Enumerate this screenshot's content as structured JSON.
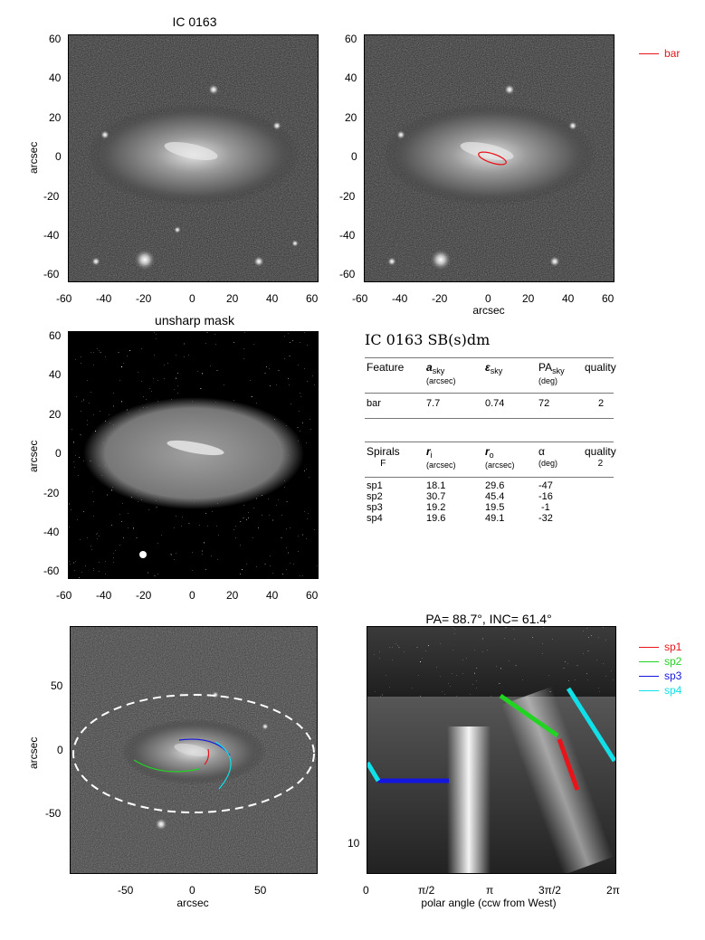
{
  "panel1": {
    "title": "IC 0163",
    "ylabel": "arcsec",
    "xticks": [
      "-60",
      "-40",
      "-20",
      "0",
      "20",
      "40",
      "60"
    ],
    "yticks": [
      "60",
      "40",
      "20",
      "0",
      "-20",
      "-40",
      "-60"
    ]
  },
  "panel2": {
    "xlabel": "arcsec",
    "xticks": [
      "-60",
      "-40",
      "-20",
      "0",
      "20",
      "40",
      "60"
    ],
    "yticks": [
      "60",
      "40",
      "20",
      "0",
      "-20",
      "-40",
      "-60"
    ],
    "legend": {
      "label": "bar",
      "color": "#e8141a"
    }
  },
  "panel3": {
    "title": "unsharp mask",
    "ylabel": "arcsec",
    "xticks": [
      "-60",
      "-40",
      "-20",
      "0",
      "20",
      "40",
      "60"
    ],
    "yticks": [
      "60",
      "40",
      "20",
      "0",
      "-20",
      "-40",
      "-60"
    ]
  },
  "table": {
    "title": "IC 0163  SB(s)dm",
    "bar_headers": [
      {
        "label": "Feature",
        "unit": ""
      },
      {
        "label": "a",
        "sub": "sky",
        "unit": "(arcsec)"
      },
      {
        "label": "ε",
        "sub": "sky",
        "unit": ""
      },
      {
        "label": "PA",
        "sub": "sky",
        "unit": "(deg)"
      },
      {
        "label": "quality",
        "unit": ""
      }
    ],
    "bar_rows": [
      [
        "bar",
        "7.7",
        "0.74",
        "72",
        "2"
      ]
    ],
    "spiral_headers": [
      {
        "label": "Spirals",
        "unit": "F"
      },
      {
        "label": "r",
        "sub": "i",
        "unit": "(arcsec)"
      },
      {
        "label": "r",
        "sub": "o",
        "unit": "(arcsec)"
      },
      {
        "label": "α",
        "unit": "(deg)"
      },
      {
        "label": "quality",
        "unit": "2"
      }
    ],
    "spiral_rows": [
      [
        "sp1",
        "18.1",
        "29.6",
        "-47"
      ],
      [
        "sp2",
        "30.7",
        "45.4",
        "-16"
      ],
      [
        "sp3",
        "19.2",
        "19.5",
        "-1"
      ],
      [
        "sp4",
        "19.6",
        "49.1",
        "-32"
      ]
    ]
  },
  "panel5": {
    "ylabel": "arcsec",
    "xlabel": "arcsec",
    "xticks": [
      "-50",
      "0",
      "50"
    ],
    "yticks": [
      "50",
      "0",
      "-50"
    ]
  },
  "panel6": {
    "title": "PA= 88.7°, INC= 61.4°",
    "xlabel": "polar angle (ccw from West)",
    "xticks": [
      "0",
      "π/2",
      "π",
      "3π/2",
      "2π"
    ],
    "yticks": [
      "10"
    ],
    "legend": [
      {
        "label": "sp1",
        "color": "#e8141a"
      },
      {
        "label": "sp2",
        "color": "#22d422"
      },
      {
        "label": "sp3",
        "color": "#1515e0"
      },
      {
        "label": "sp4",
        "color": "#10e0e8"
      }
    ]
  }
}
